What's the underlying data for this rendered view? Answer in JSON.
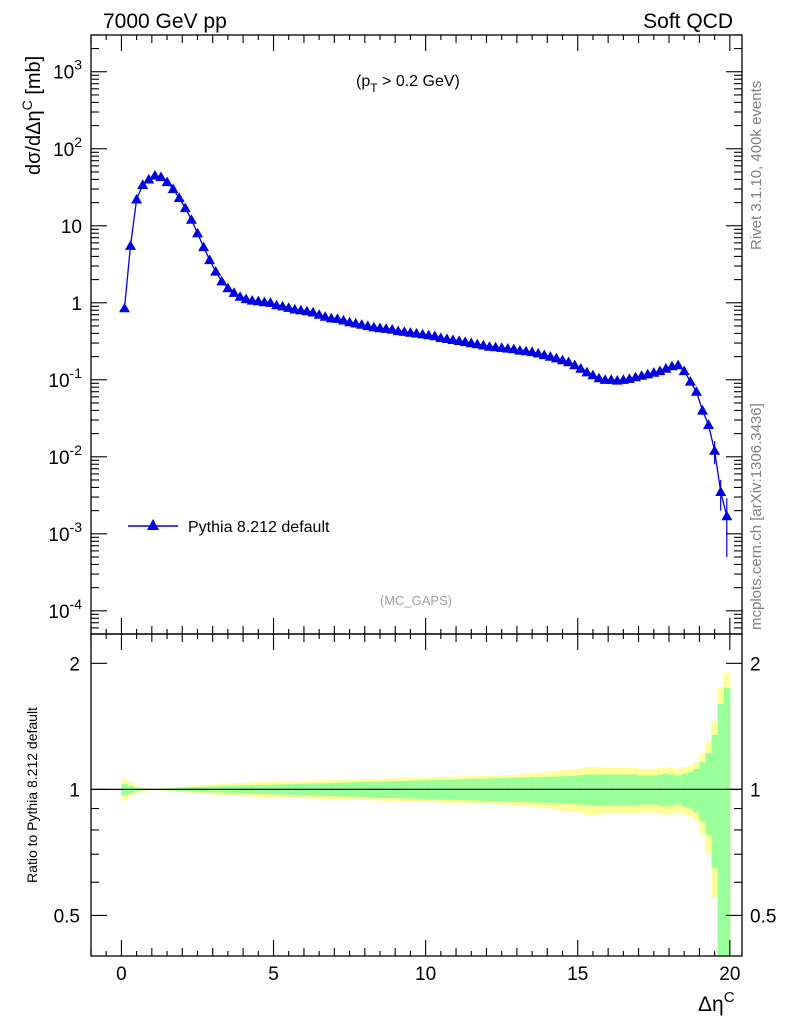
{
  "header": {
    "left_title": "7000 GeV pp",
    "right_title": "Soft QCD",
    "cut_label": "(p_T > 0.2 GeV)",
    "analysis_label": "(MC_GAPS)",
    "side_label_top": "Rivet 3.1.10,  400k events",
    "side_label_bottom": "mcplots.cern.ch [arXiv:1306.3436]"
  },
  "colors": {
    "series": "#0000e0",
    "band_outer": "#ffff99",
    "band_inner": "#99ff99",
    "frame": "#000000",
    "side_text": "#7f7f7f"
  },
  "chart_data": [
    {
      "type": "scatter",
      "panel": "main",
      "ylabel": "dσ/dΔη^C [mb]",
      "xlim": [
        -1,
        20.4
      ],
      "ylim": [
        5e-05,
        3000
      ],
      "yscale": "log",
      "y_tick_labels": [
        "10^-4",
        "10^-3",
        "10^-2",
        "10^-1",
        "1",
        "10",
        "10^2",
        "10^3"
      ],
      "legend": {
        "placement": "lower-left"
      },
      "series": [
        {
          "name": "Pythia 8.212 default",
          "marker": "triangle-up",
          "x": [
            0.1,
            0.3,
            0.5,
            0.7,
            0.9,
            1.1,
            1.3,
            1.5,
            1.7,
            1.9,
            2.1,
            2.3,
            2.5,
            2.7,
            2.9,
            3.1,
            3.3,
            3.5,
            3.7,
            3.9,
            4.1,
            4.3,
            4.5,
            4.7,
            4.9,
            5.1,
            5.3,
            5.5,
            5.7,
            5.9,
            6.1,
            6.3,
            6.5,
            6.7,
            6.9,
            7.1,
            7.3,
            7.5,
            7.7,
            7.9,
            8.1,
            8.3,
            8.5,
            8.7,
            8.9,
            9.1,
            9.3,
            9.5,
            9.7,
            9.9,
            10.1,
            10.3,
            10.5,
            10.7,
            10.9,
            11.1,
            11.3,
            11.5,
            11.7,
            11.9,
            12.1,
            12.3,
            12.5,
            12.7,
            12.9,
            13.1,
            13.3,
            13.5,
            13.7,
            13.9,
            14.1,
            14.3,
            14.5,
            14.7,
            14.9,
            15.1,
            15.3,
            15.5,
            15.7,
            15.9,
            16.1,
            16.3,
            16.5,
            16.7,
            16.9,
            17.1,
            17.3,
            17.5,
            17.7,
            17.9,
            18.1,
            18.3,
            18.5,
            18.7,
            18.9,
            19.1,
            19.3,
            19.5,
            19.7,
            19.9
          ],
          "y": [
            0.85,
            5.5,
            22,
            34,
            40,
            45,
            43,
            37,
            30,
            23,
            17,
            12,
            8,
            5.3,
            3.6,
            2.55,
            1.9,
            1.55,
            1.35,
            1.2,
            1.12,
            1.07,
            1.05,
            1.02,
            1.0,
            0.93,
            0.9,
            0.86,
            0.82,
            0.8,
            0.78,
            0.75,
            0.7,
            0.66,
            0.63,
            0.62,
            0.59,
            0.56,
            0.54,
            0.52,
            0.5,
            0.48,
            0.47,
            0.46,
            0.45,
            0.43,
            0.42,
            0.41,
            0.4,
            0.39,
            0.38,
            0.37,
            0.35,
            0.34,
            0.33,
            0.32,
            0.31,
            0.3,
            0.29,
            0.28,
            0.27,
            0.265,
            0.26,
            0.255,
            0.25,
            0.24,
            0.235,
            0.23,
            0.22,
            0.21,
            0.2,
            0.19,
            0.18,
            0.17,
            0.155,
            0.14,
            0.125,
            0.115,
            0.105,
            0.1,
            0.1,
            0.098,
            0.1,
            0.103,
            0.108,
            0.113,
            0.118,
            0.124,
            0.13,
            0.14,
            0.15,
            0.155,
            0.13,
            0.095,
            0.07,
            0.04,
            0.026,
            0.012,
            0.0035,
            0.0017
          ],
          "yerr": [
            0,
            0,
            0,
            0,
            0,
            0,
            0,
            0,
            0,
            0,
            0,
            0,
            0,
            0,
            0,
            0,
            0,
            0,
            0,
            0,
            0,
            0,
            0,
            0,
            0,
            0,
            0,
            0,
            0,
            0,
            0,
            0,
            0,
            0,
            0,
            0,
            0,
            0,
            0,
            0,
            0,
            0,
            0,
            0,
            0,
            0,
            0,
            0,
            0,
            0,
            0,
            0,
            0,
            0,
            0,
            0,
            0,
            0,
            0,
            0,
            0,
            0,
            0,
            0,
            0,
            0,
            0,
            0,
            0,
            0,
            0,
            0,
            0,
            0,
            0,
            0,
            0,
            0,
            0,
            0,
            0,
            0,
            0,
            0,
            0,
            0,
            0,
            0,
            0,
            0,
            0,
            0,
            0,
            0,
            0,
            0.005,
            0.002,
            0.004,
            0.0015,
            0.0012
          ]
        }
      ]
    },
    {
      "type": "area",
      "panel": "ratio",
      "xlabel": "Δη^C",
      "ylabel": "Ratio to Pythia 8.212 default",
      "xlim": [
        -1,
        20.4
      ],
      "ylim": [
        0.4,
        2.35
      ],
      "yscale": "log",
      "x_tick_labels": [
        "0",
        "5",
        "10",
        "15",
        "20"
      ],
      "y_tick_labels": [
        "0.5",
        "1",
        "2"
      ],
      "x": [
        0.1,
        0.3,
        0.5,
        0.7,
        0.9,
        1.1,
        1.3,
        1.5,
        1.7,
        1.9,
        2.1,
        2.3,
        2.5,
        2.7,
        2.9,
        3.1,
        3.3,
        3.5,
        3.7,
        3.9,
        4.1,
        4.3,
        4.5,
        4.7,
        4.9,
        5.1,
        5.3,
        5.5,
        5.7,
        5.9,
        6.1,
        6.3,
        6.5,
        6.7,
        6.9,
        7.1,
        7.3,
        7.5,
        7.7,
        7.9,
        8.1,
        8.3,
        8.5,
        8.7,
        8.9,
        9.1,
        9.3,
        9.5,
        9.7,
        9.9,
        10.1,
        10.3,
        10.5,
        10.7,
        10.9,
        11.1,
        11.3,
        11.5,
        11.7,
        11.9,
        12.1,
        12.3,
        12.5,
        12.7,
        12.9,
        13.1,
        13.3,
        13.5,
        13.7,
        13.9,
        14.1,
        14.3,
        14.5,
        14.7,
        14.9,
        15.1,
        15.3,
        15.5,
        15.7,
        15.9,
        16.1,
        16.3,
        16.5,
        16.7,
        16.9,
        17.1,
        17.3,
        17.5,
        17.7,
        17.9,
        18.1,
        18.3,
        18.5,
        18.7,
        18.9,
        19.1,
        19.3,
        19.5,
        19.7,
        19.9
      ],
      "outer_band_halfwidth": [
        0.06,
        0.04,
        0.02,
        0.01,
        0.005,
        0.004,
        0.005,
        0.007,
        0.01,
        0.013,
        0.016,
        0.019,
        0.022,
        0.025,
        0.027,
        0.029,
        0.031,
        0.033,
        0.034,
        0.036,
        0.037,
        0.039,
        0.04,
        0.041,
        0.042,
        0.043,
        0.044,
        0.045,
        0.046,
        0.047,
        0.048,
        0.049,
        0.05,
        0.051,
        0.052,
        0.053,
        0.054,
        0.055,
        0.056,
        0.057,
        0.058,
        0.059,
        0.06,
        0.061,
        0.062,
        0.063,
        0.064,
        0.065,
        0.066,
        0.067,
        0.068,
        0.069,
        0.07,
        0.071,
        0.072,
        0.073,
        0.074,
        0.075,
        0.076,
        0.077,
        0.078,
        0.079,
        0.08,
        0.081,
        0.083,
        0.085,
        0.087,
        0.09,
        0.093,
        0.096,
        0.1,
        0.105,
        0.11,
        0.115,
        0.115,
        0.12,
        0.13,
        0.13,
        0.13,
        0.125,
        0.125,
        0.125,
        0.125,
        0.125,
        0.125,
        0.12,
        0.12,
        0.12,
        0.125,
        0.13,
        0.125,
        0.12,
        0.13,
        0.14,
        0.16,
        0.22,
        0.3,
        0.45,
        0.75,
        0.9
      ],
      "inner_band_halfwidth": [
        0.03,
        0.02,
        0.01,
        0.005,
        0.003,
        0.002,
        0.003,
        0.004,
        0.006,
        0.008,
        0.01,
        0.012,
        0.013,
        0.015,
        0.016,
        0.017,
        0.018,
        0.019,
        0.02,
        0.021,
        0.022,
        0.023,
        0.024,
        0.025,
        0.026,
        0.027,
        0.028,
        0.029,
        0.03,
        0.031,
        0.032,
        0.033,
        0.034,
        0.035,
        0.036,
        0.037,
        0.038,
        0.039,
        0.04,
        0.041,
        0.042,
        0.043,
        0.044,
        0.045,
        0.046,
        0.047,
        0.048,
        0.049,
        0.05,
        0.051,
        0.052,
        0.053,
        0.054,
        0.055,
        0.056,
        0.057,
        0.058,
        0.059,
        0.06,
        0.061,
        0.062,
        0.063,
        0.064,
        0.065,
        0.066,
        0.067,
        0.068,
        0.069,
        0.07,
        0.071,
        0.072,
        0.073,
        0.075,
        0.077,
        0.078,
        0.08,
        0.085,
        0.085,
        0.085,
        0.085,
        0.085,
        0.085,
        0.085,
        0.085,
        0.085,
        0.08,
        0.08,
        0.08,
        0.085,
        0.09,
        0.085,
        0.08,
        0.09,
        0.1,
        0.12,
        0.16,
        0.22,
        0.35,
        0.6,
        0.75
      ],
      "reference_line": 1
    }
  ]
}
